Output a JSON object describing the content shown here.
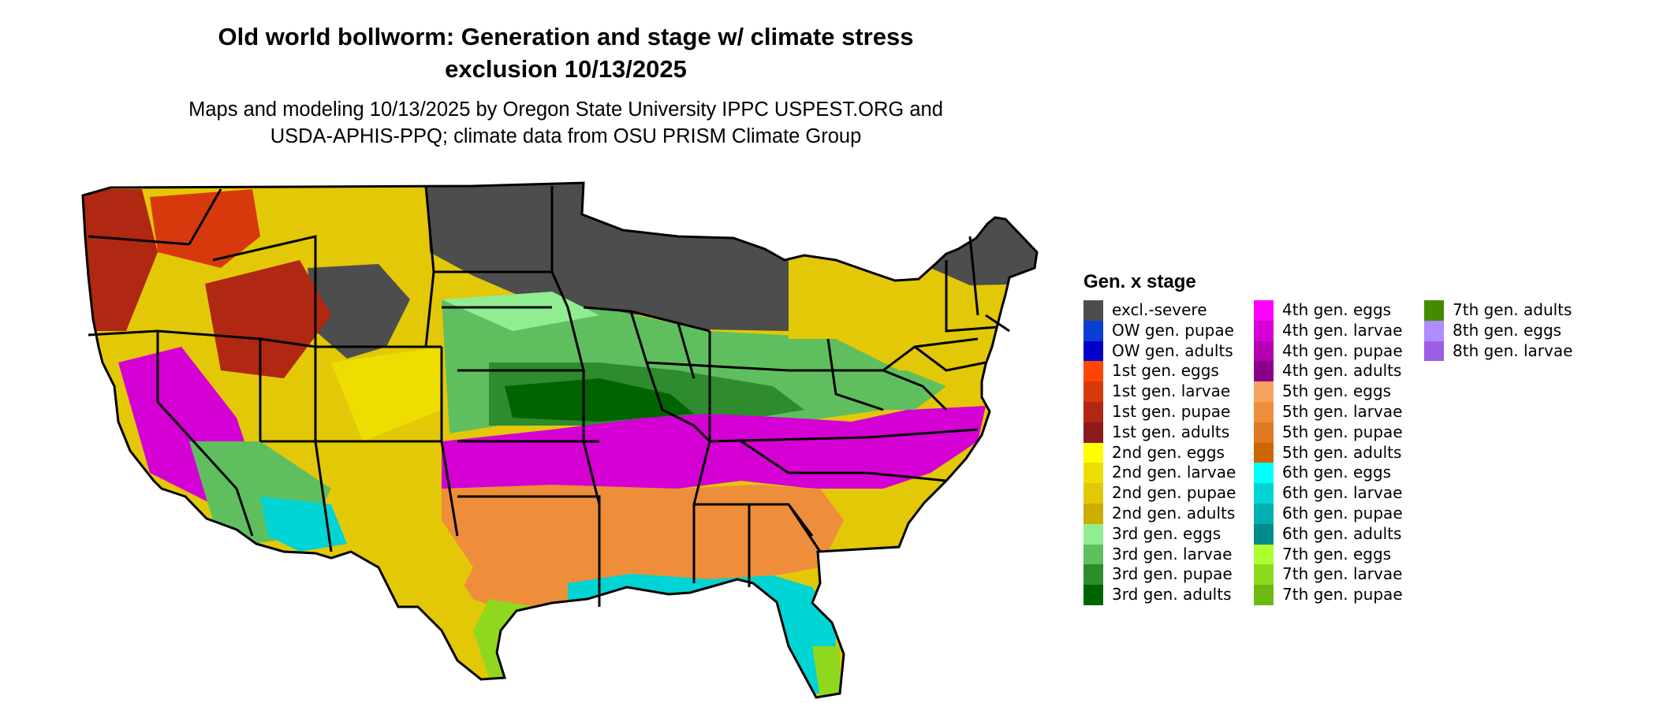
{
  "header": {
    "title_line1": "Old world bollworm: Generation and stage w/ climate stress",
    "title_line2": "exclusion 10/13/2025",
    "subtitle_line1": "Maps and modeling 10/13/2025 by Oregon State University IPPC USPEST.ORG and",
    "subtitle_line2": "USDA-APHIS-PPQ; climate data from OSU PRISM Climate Group"
  },
  "legend": {
    "title": "Gen. x stage",
    "columns": [
      [
        {
          "label": "excl.-severe",
          "color": "#4d4d4d"
        },
        {
          "label": "OW gen. pupae",
          "color": "#0a3fd6"
        },
        {
          "label": "OW gen. adults",
          "color": "#0000c8"
        },
        {
          "label": "1st gen. eggs",
          "color": "#ff4500"
        },
        {
          "label": "1st gen. larvae",
          "color": "#d8390c"
        },
        {
          "label": "1st gen. pupae",
          "color": "#b02712"
        },
        {
          "label": "1st gen. adults",
          "color": "#8b1a1a"
        },
        {
          "label": "2nd gen. eggs",
          "color": "#ffff00"
        },
        {
          "label": "2nd gen. larvae",
          "color": "#eedd00"
        },
        {
          "label": "2nd gen. pupae",
          "color": "#e3c807"
        },
        {
          "label": "2nd gen. adults",
          "color": "#cdad00"
        },
        {
          "label": "3rd gen. eggs",
          "color": "#90ee90"
        },
        {
          "label": "3rd gen. larvae",
          "color": "#5fbf5f"
        },
        {
          "label": "3rd gen. pupae",
          "color": "#2e8b2e"
        },
        {
          "label": "3rd gen. adults",
          "color": "#006400"
        }
      ],
      [
        {
          "label": "4th gen. eggs",
          "color": "#ff00ff"
        },
        {
          "label": "4th gen. larvae",
          "color": "#d400d4"
        },
        {
          "label": "4th gen. pupae",
          "color": "#b300b3"
        },
        {
          "label": "4th gen. adults",
          "color": "#8b008b"
        },
        {
          "label": "5th gen. eggs",
          "color": "#f4a460"
        },
        {
          "label": "5th gen. larvae",
          "color": "#ee8e3a"
        },
        {
          "label": "5th gen. pupae",
          "color": "#e07a22"
        },
        {
          "label": "5th gen. adults",
          "color": "#cd6600"
        },
        {
          "label": "6th gen. eggs",
          "color": "#00ffff"
        },
        {
          "label": "6th gen. larvae",
          "color": "#00d4d4"
        },
        {
          "label": "6th gen. pupae",
          "color": "#00b0b0"
        },
        {
          "label": "6th gen. adults",
          "color": "#008b8b"
        },
        {
          "label": "7th gen. eggs",
          "color": "#adff2f"
        },
        {
          "label": "7th gen. larvae",
          "color": "#8fd81e"
        },
        {
          "label": "7th gen. pupae",
          "color": "#6cb912"
        }
      ],
      [
        {
          "label": "7th gen. adults",
          "color": "#458b00"
        },
        {
          "label": "8th gen. eggs",
          "color": "#b08cff"
        },
        {
          "label": "8th gen. larvae",
          "color": "#9c5fe6"
        }
      ]
    ]
  }
}
